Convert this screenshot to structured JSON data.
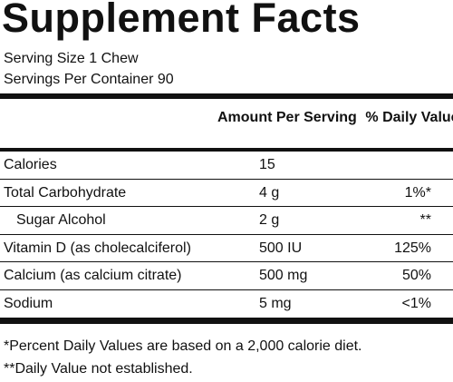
{
  "header": {
    "title": "Supplement Facts"
  },
  "serving": {
    "size": "Serving Size 1 Chew",
    "per_container": "Servings Per Container 90"
  },
  "table": {
    "columns": [
      "Amount Per Serving",
      "% Daily Value"
    ],
    "rows": [
      [
        "Calories",
        "15"
      ],
      [
        "Total Carbohydrate",
        "4 g",
        "1%*"
      ],
      [
        "Sugar Alcohol",
        "2 g",
        "**"
      ],
      [
        "Vitamin D (as cholecalciferol)",
        "500 IU",
        "125%"
      ],
      [
        "Calcium (as calcium citrate)",
        "500 mg",
        "50%"
      ],
      [
        "Sodium",
        "5 mg",
        "<1%"
      ]
    ]
  },
  "footnotes": [
    "*Percent Daily Values are based on a 2,000 calorie diet.",
    "**Daily Value not established."
  ]
}
